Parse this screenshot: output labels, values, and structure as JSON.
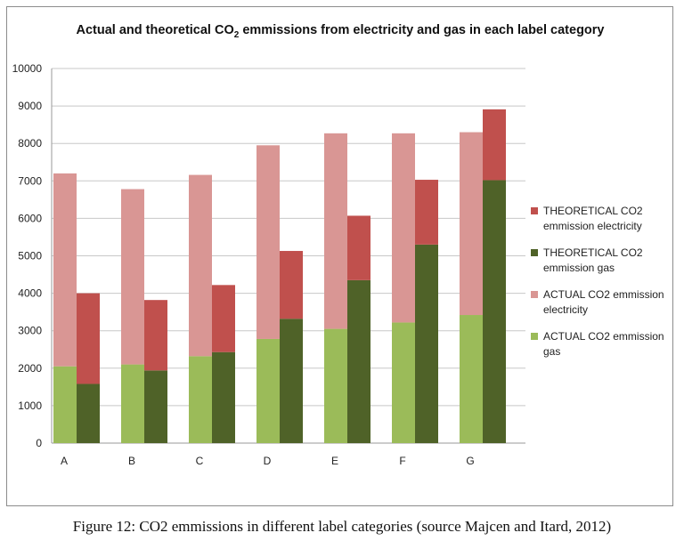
{
  "caption": "Figure 12: CO2 emmissions in different label categories (source Majcen and Itard, 2012)",
  "chart_data": {
    "type": "bar",
    "stacked": true,
    "title_prefix": "Actual and theoretical CO",
    "title_subscript": "2",
    "title_suffix": " emmissions from electricity and gas in each label category",
    "xlabel": "",
    "ylabel": "",
    "categories": [
      "A",
      "B",
      "C",
      "D",
      "E",
      "F",
      "G"
    ],
    "ylim": [
      0,
      10000
    ],
    "yticks": [
      0,
      1000,
      2000,
      3000,
      4000,
      5000,
      6000,
      7000,
      8000,
      9000,
      10000
    ],
    "grid": true,
    "legend_position": "right",
    "stacks": [
      {
        "name": "actual",
        "series": [
          {
            "name": "ACTUAL CO2 emmission gas",
            "color": "#9bbb59",
            "values": [
              2050,
              2100,
              2320,
              2780,
              3050,
              3220,
              3420
            ]
          },
          {
            "name": "ACTUAL CO2 emmission electricity",
            "color": "#d99694",
            "values": [
              5150,
              4680,
              4840,
              5170,
              5220,
              5050,
              4880
            ]
          }
        ]
      },
      {
        "name": "theoretical",
        "series": [
          {
            "name": "THEORETICAL CO2 emmission gas",
            "color": "#4f6228",
            "values": [
              1580,
              1940,
              2430,
              3320,
              4350,
              5300,
              7020
            ]
          },
          {
            "name": "THEORETICAL CO2 emmission electricity",
            "color": "#c0504d",
            "values": [
              2420,
              1880,
              1790,
              1810,
              1720,
              1730,
              1890
            ]
          }
        ]
      }
    ],
    "legend": [
      {
        "label_lines": [
          "THEORETICAL CO2",
          "emmission electricity"
        ],
        "color": "#c0504d"
      },
      {
        "label_lines": [
          "THEORETICAL CO2",
          "emmission gas"
        ],
        "color": "#4f6228"
      },
      {
        "label_lines": [
          "ACTUAL CO2 emmission",
          "electricity"
        ],
        "color": "#d99694"
      },
      {
        "label_lines": [
          "ACTUAL CO2 emmission",
          "gas"
        ],
        "color": "#9bbb59"
      }
    ]
  }
}
